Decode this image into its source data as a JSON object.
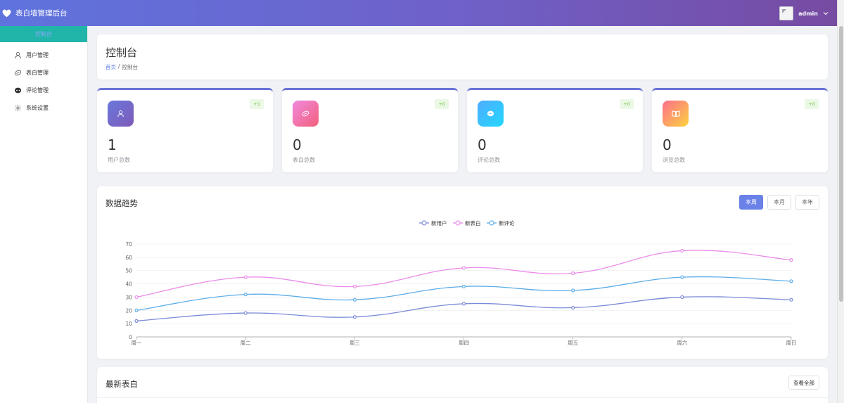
{
  "header": {
    "app_title": "表白墙管理后台",
    "user_name": "admin"
  },
  "sidebar": {
    "items": [
      {
        "label": "控制台",
        "icon": "dashboard-icon",
        "active": true
      },
      {
        "label": "用户管理",
        "icon": "user-icon"
      },
      {
        "label": "表白管理",
        "icon": "heart-icon"
      },
      {
        "label": "评论管理",
        "icon": "comment-icon"
      },
      {
        "label": "系统设置",
        "icon": "gear-icon"
      }
    ]
  },
  "page": {
    "title": "控制台",
    "breadcrumb": [
      "首页",
      "控制台"
    ],
    "breadcrumb_separator": "/"
  },
  "stats": [
    {
      "label": "用户总数",
      "value": "1",
      "badge": "+1",
      "icon": "user-icon",
      "gradient": [
        "#6a77dc",
        "#7d5bb8"
      ]
    },
    {
      "label": "表白总数",
      "value": "0",
      "badge": "+0",
      "icon": "heart-icon",
      "gradient": [
        "#f08ae0",
        "#f3607a"
      ]
    },
    {
      "label": "评论总数",
      "value": "0",
      "badge": "+0",
      "icon": "comment-icon",
      "gradient": [
        "#4facfe",
        "#22d8fe"
      ]
    },
    {
      "label": "浏览总数",
      "value": "0",
      "badge": "+0",
      "icon": "book-icon",
      "gradient": [
        "#fb6f8c",
        "#fdd23f"
      ]
    }
  ],
  "trend": {
    "title": "数据趋势",
    "buttons": [
      "本周",
      "本月",
      "本年"
    ],
    "active_button": "本周"
  },
  "chart_data": {
    "type": "line",
    "categories": [
      "周一",
      "周二",
      "周三",
      "周四",
      "周五",
      "周六",
      "周日"
    ],
    "series": [
      {
        "name": "新用户",
        "values": [
          12,
          18,
          15,
          25,
          22,
          30,
          28
        ],
        "color": "#7b8bd8"
      },
      {
        "name": "新表白",
        "values": [
          30,
          45,
          38,
          52,
          48,
          65,
          58
        ],
        "color": "#ea8cea"
      },
      {
        "name": "新评论",
        "values": [
          20,
          32,
          28,
          38,
          35,
          45,
          42
        ],
        "color": "#5dade8"
      }
    ],
    "ylim": [
      0,
      70
    ],
    "yticks": [
      0,
      10,
      20,
      30,
      40,
      50,
      60,
      70
    ],
    "grid": true,
    "smooth": true,
    "legend_position": "top-center"
  },
  "latest": {
    "title": "最新表白",
    "view_all": "查看全部"
  },
  "colors": {
    "header_start": "#5f73de",
    "header_end": "#764ba2",
    "active_nav_bg": "#21b5aa",
    "primary": "#6a81e8",
    "badge_green": "#67c23a"
  }
}
